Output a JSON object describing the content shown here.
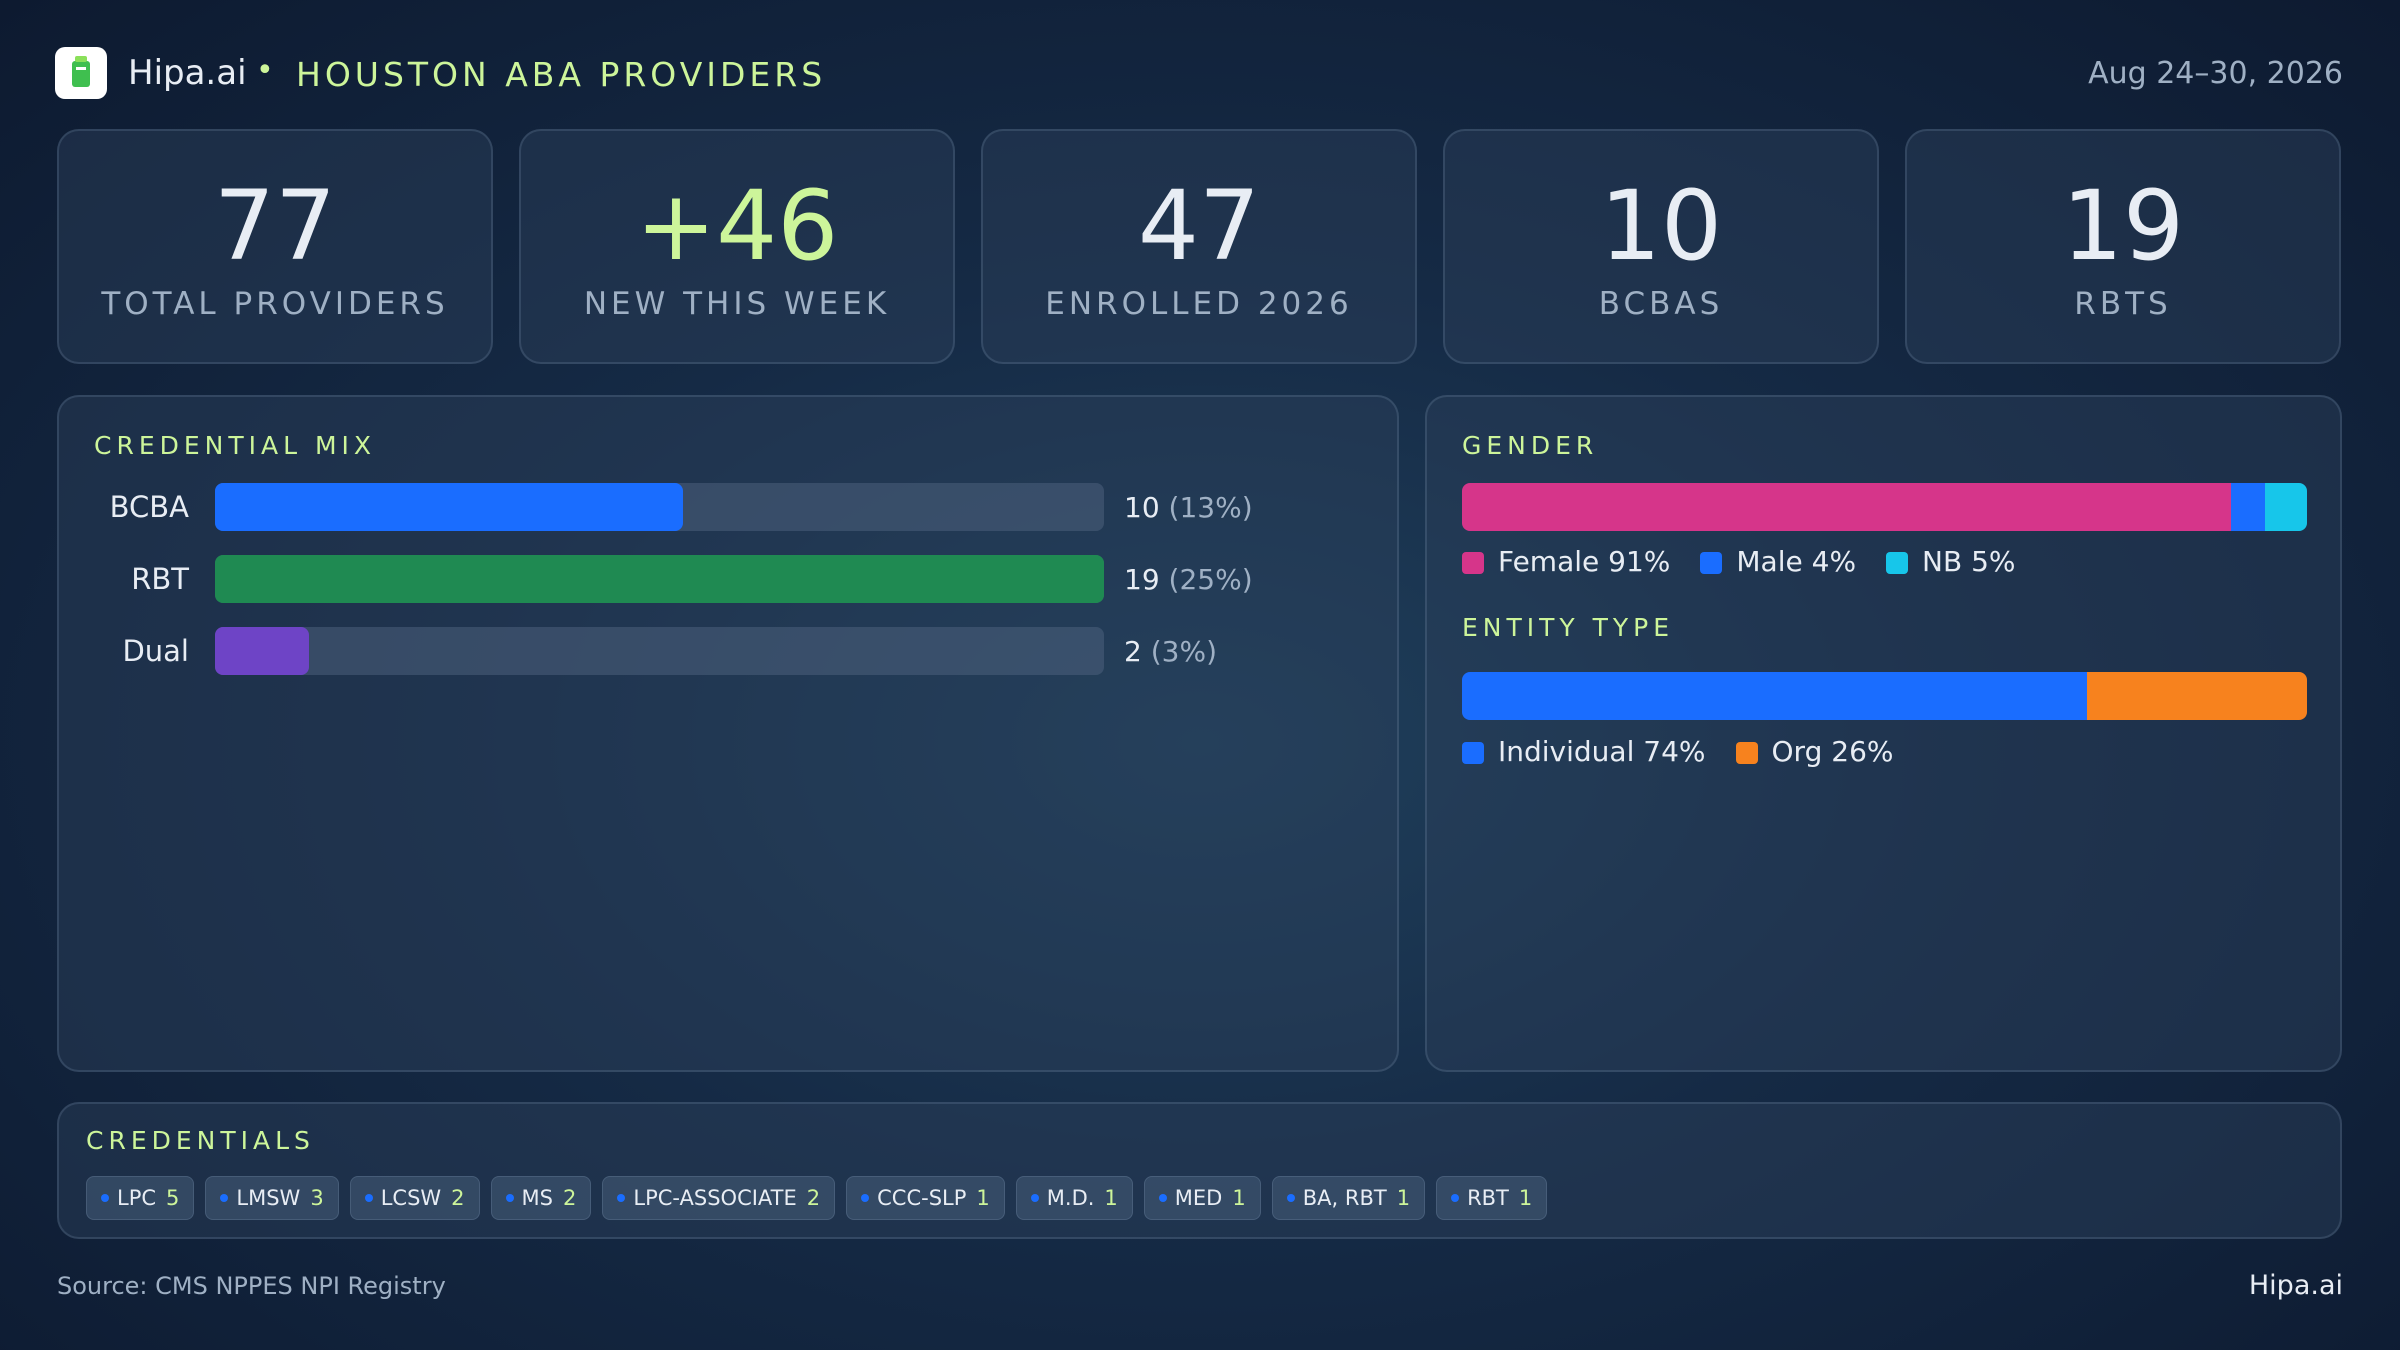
{
  "header": {
    "brand": "Hipa.ai",
    "separator": "•",
    "title": "HOUSTON ABA PROVIDERS",
    "date": "Aug 24–30, 2026"
  },
  "kpis": [
    {
      "value": 77,
      "caption": "TOTAL PROVIDERS"
    },
    {
      "value": 46,
      "value_label": "+46",
      "caption": "NEW THIS WEEK"
    },
    {
      "value": 47,
      "caption": "ENROLLED 2026"
    },
    {
      "value": 10,
      "caption": "BCBAS"
    },
    {
      "value": 19,
      "caption": "RBTS"
    }
  ],
  "credential_mix": {
    "title": "CREDENTIAL MIX",
    "categories": [
      "BCBA",
      "RBT",
      "Dual"
    ],
    "values": [
      10,
      19,
      2
    ],
    "shares": [
      13,
      25,
      3
    ],
    "share_labels": [
      "(13%)",
      "(25%)",
      "(3%)"
    ],
    "colors": [
      "#1a6dff",
      "#1f8a52",
      "#6e44c6"
    ],
    "xlim": [
      0,
      19
    ]
  },
  "gender": {
    "title": "GENDER",
    "series": [
      {
        "name": "Female",
        "value": 91,
        "value_label": "91%",
        "color": "#d6358a"
      },
      {
        "name": "Male",
        "value": 4,
        "value_label": "4%",
        "color": "#1a6dff"
      },
      {
        "name": "NB",
        "value": 5,
        "value_label": "5%",
        "color": "#17c6ea"
      }
    ]
  },
  "entity_type": {
    "title": "ENTITY TYPE",
    "series": [
      {
        "name": "Individual",
        "value": 74,
        "value_label": "74%",
        "color": "#1a6dff"
      },
      {
        "name": "Org",
        "value": 26,
        "value_label": "26%",
        "color": "#f7821e"
      }
    ]
  },
  "credentials": {
    "title": "CREDENTIALS",
    "tags": [
      {
        "name": "LPC",
        "count": 5
      },
      {
        "name": "LMSW",
        "count": 3
      },
      {
        "name": "LCSW",
        "count": 2
      },
      {
        "name": "MS",
        "count": 2
      },
      {
        "name": "LPC-ASSOCIATE",
        "count": 2
      },
      {
        "name": "CCC-SLP",
        "count": 1
      },
      {
        "name": "M.D.",
        "count": 1
      },
      {
        "name": "MED",
        "count": 1
      },
      {
        "name": "BA, RBT",
        "count": 1
      },
      {
        "name": "RBT",
        "count": 1
      }
    ]
  },
  "footer": {
    "source": "Source: CMS NPPES NPI Registry",
    "brand": "Hipa.ai"
  }
}
